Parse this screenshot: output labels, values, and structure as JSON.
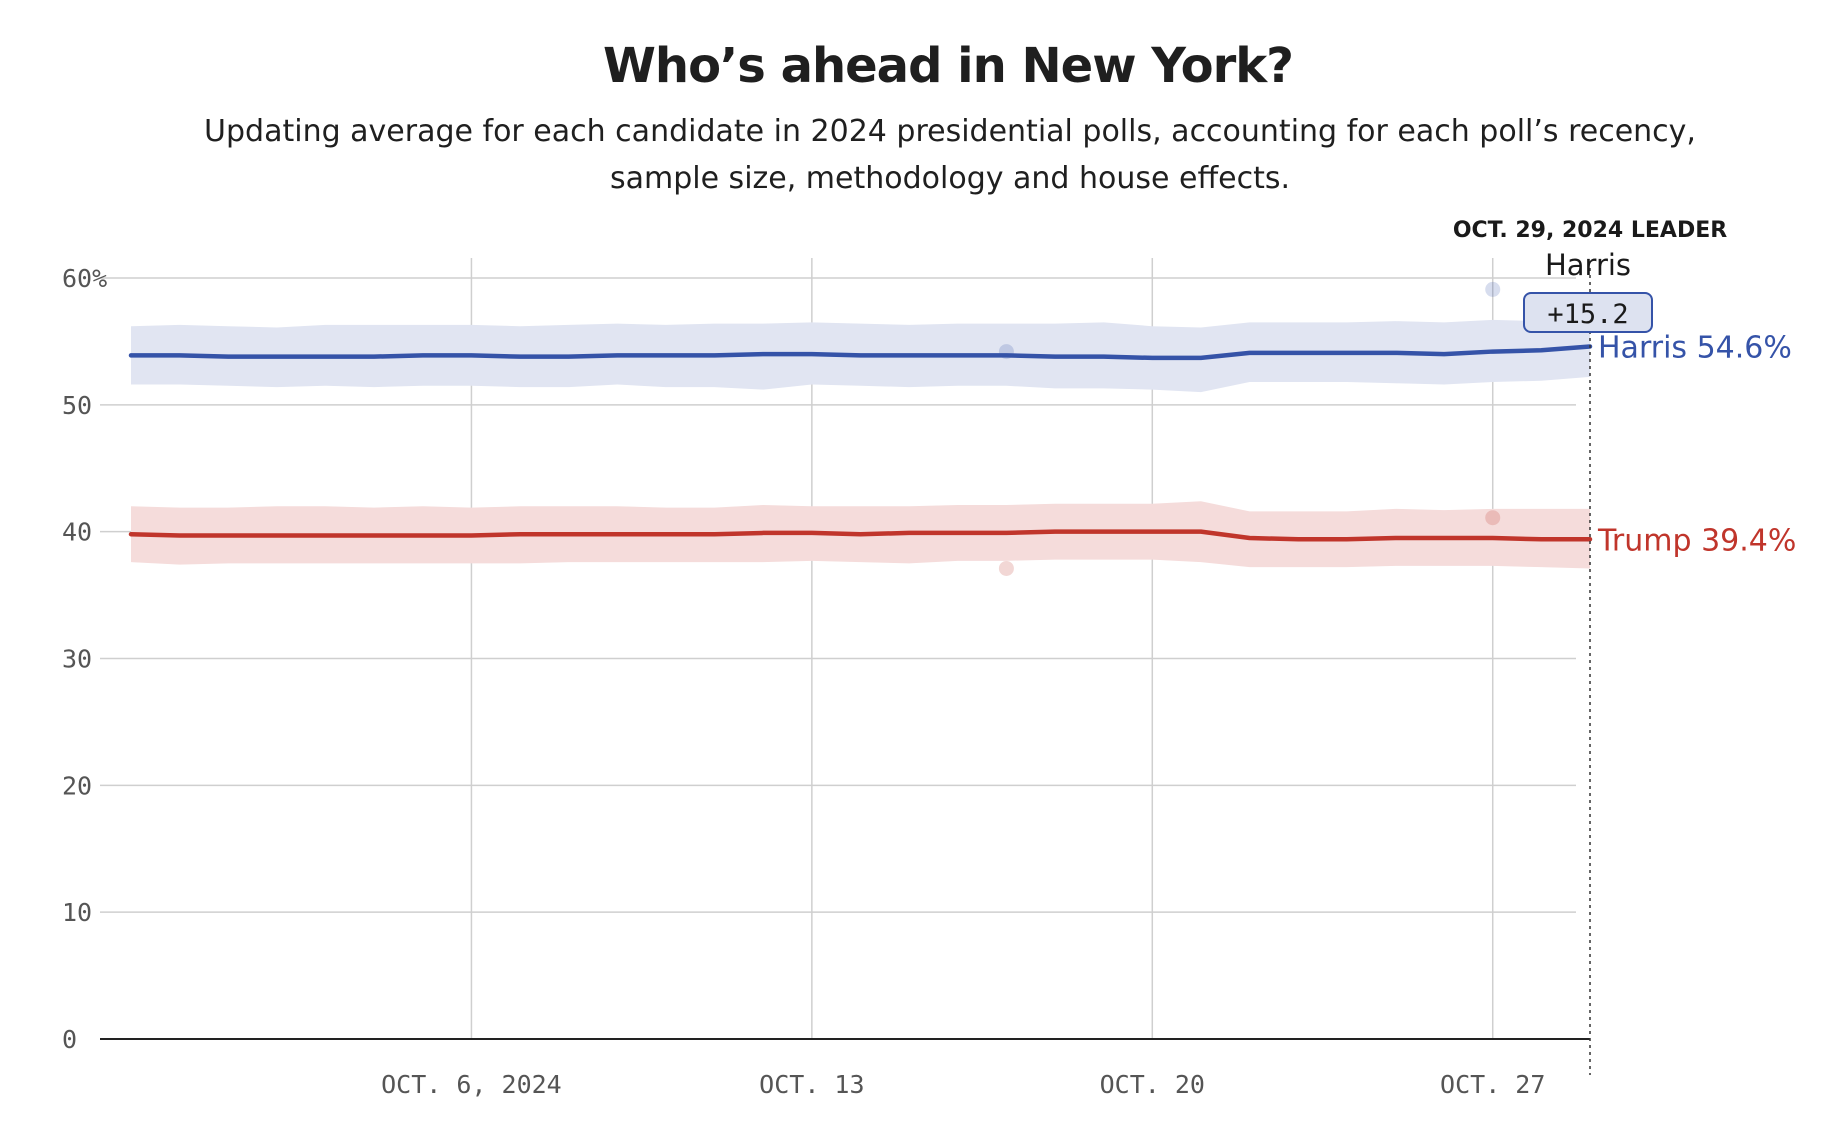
{
  "chart_data": {
    "type": "line",
    "title": "Who’s ahead in New York?",
    "subtitle": "Updating average for each candidate in 2024 presidential polls, accounting for each poll’s recency, sample size, methodology and house effects.",
    "ylim": [
      0,
      60
    ],
    "y_ticks": [
      "60%",
      "50",
      "40",
      "30",
      "20",
      "10",
      "0"
    ],
    "y_tick_values": [
      60,
      50,
      40,
      30,
      20,
      10,
      0
    ],
    "x_range": [
      "2024-09-29",
      "2024-10-29"
    ],
    "x_tick_labels": [
      "OCT. 6, 2024",
      "OCT. 13",
      "OCT. 20",
      "OCT. 27"
    ],
    "x_tick_dates": [
      "2024-10-06",
      "2024-10-13",
      "2024-10-20",
      "2024-10-27"
    ],
    "x": [
      "2024-09-29",
      "2024-09-30",
      "2024-10-01",
      "2024-10-02",
      "2024-10-03",
      "2024-10-04",
      "2024-10-05",
      "2024-10-06",
      "2024-10-07",
      "2024-10-08",
      "2024-10-09",
      "2024-10-10",
      "2024-10-11",
      "2024-10-12",
      "2024-10-13",
      "2024-10-14",
      "2024-10-15",
      "2024-10-16",
      "2024-10-17",
      "2024-10-18",
      "2024-10-19",
      "2024-10-20",
      "2024-10-21",
      "2024-10-22",
      "2024-10-23",
      "2024-10-24",
      "2024-10-25",
      "2024-10-26",
      "2024-10-27",
      "2024-10-28",
      "2024-10-29"
    ],
    "series": [
      {
        "name": "Harris",
        "color": "#3553a8",
        "band_color": "#e1e5f2",
        "values": [
          53.9,
          53.9,
          53.8,
          53.8,
          53.8,
          53.8,
          53.9,
          53.9,
          53.8,
          53.8,
          53.9,
          53.9,
          53.9,
          54.0,
          54.0,
          53.9,
          53.9,
          53.9,
          53.9,
          53.8,
          53.8,
          53.7,
          53.7,
          54.1,
          54.1,
          54.1,
          54.1,
          54.0,
          54.2,
          54.3,
          54.6
        ],
        "upper": [
          56.2,
          56.3,
          56.2,
          56.1,
          56.3,
          56.3,
          56.3,
          56.3,
          56.2,
          56.3,
          56.4,
          56.3,
          56.4,
          56.4,
          56.5,
          56.4,
          56.3,
          56.4,
          56.4,
          56.4,
          56.5,
          56.2,
          56.1,
          56.5,
          56.5,
          56.5,
          56.6,
          56.5,
          56.7,
          56.6,
          56.9
        ],
        "lower": [
          51.6,
          51.6,
          51.5,
          51.4,
          51.5,
          51.4,
          51.5,
          51.5,
          51.4,
          51.4,
          51.6,
          51.4,
          51.4,
          51.2,
          51.6,
          51.5,
          51.4,
          51.5,
          51.5,
          51.3,
          51.3,
          51.2,
          51.0,
          51.8,
          51.8,
          51.8,
          51.7,
          51.6,
          51.8,
          51.9,
          52.2
        ],
        "label": "Harris 54.6%"
      },
      {
        "name": "Trump",
        "color": "#c0352b",
        "band_color": "#f5dcdb",
        "values": [
          39.8,
          39.7,
          39.7,
          39.7,
          39.7,
          39.7,
          39.7,
          39.7,
          39.8,
          39.8,
          39.8,
          39.8,
          39.8,
          39.9,
          39.9,
          39.8,
          39.9,
          39.9,
          39.9,
          40.0,
          40.0,
          40.0,
          40.0,
          39.5,
          39.4,
          39.4,
          39.5,
          39.5,
          39.5,
          39.4,
          39.4
        ],
        "upper": [
          42.0,
          41.9,
          41.9,
          42.0,
          42.0,
          41.9,
          42.0,
          41.9,
          42.0,
          42.0,
          42.0,
          41.9,
          41.9,
          42.1,
          42.0,
          42.0,
          42.0,
          42.1,
          42.1,
          42.2,
          42.2,
          42.2,
          42.4,
          41.6,
          41.6,
          41.6,
          41.8,
          41.7,
          41.8,
          41.8,
          41.8
        ],
        "lower": [
          37.6,
          37.4,
          37.5,
          37.5,
          37.5,
          37.5,
          37.5,
          37.5,
          37.5,
          37.6,
          37.6,
          37.6,
          37.6,
          37.6,
          37.7,
          37.6,
          37.5,
          37.7,
          37.7,
          37.8,
          37.8,
          37.8,
          37.6,
          37.2,
          37.2,
          37.2,
          37.3,
          37.3,
          37.3,
          37.2,
          37.1
        ],
        "label": "Trump 39.4%"
      }
    ],
    "polls": [
      {
        "candidate": "Harris",
        "date": "2024-10-17",
        "value": 54.2
      },
      {
        "candidate": "Trump",
        "date": "2024-10-17",
        "value": 37.1
      },
      {
        "candidate": "Harris",
        "date": "2024-10-27",
        "value": 59.1
      },
      {
        "candidate": "Trump",
        "date": "2024-10-27",
        "value": 41.1
      }
    ],
    "leader_box": {
      "heading": "OCT. 29, 2024 LEADER",
      "name": "Harris",
      "margin": "+15.2"
    },
    "grid": true
  }
}
